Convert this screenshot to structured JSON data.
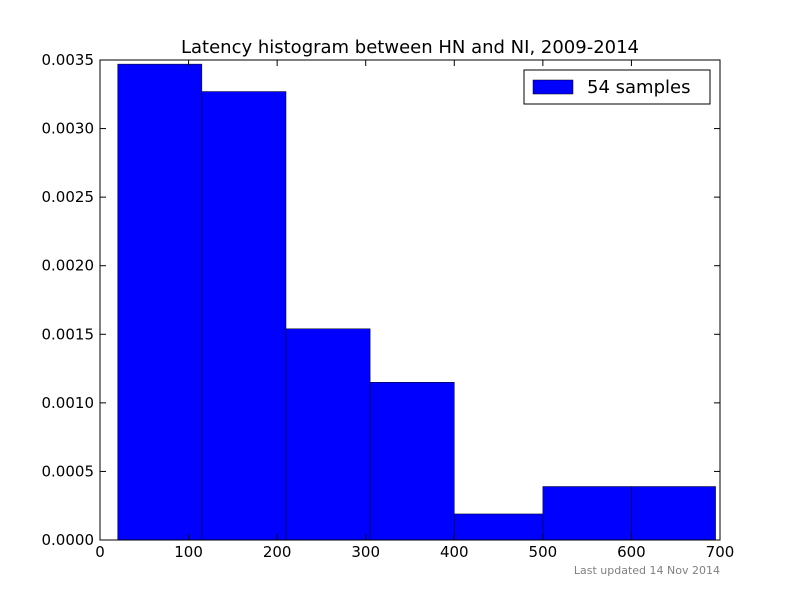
{
  "chart_data": {
    "type": "bar",
    "title": "Latency histogram between HN and NI, 2009-2014",
    "xlabel": "",
    "ylabel": "",
    "xlim": [
      0,
      700
    ],
    "ylim": [
      0,
      0.0035
    ],
    "xticks": [
      "0",
      "100",
      "200",
      "300",
      "400",
      "500",
      "600",
      "700"
    ],
    "yticks": [
      "0.0000",
      "0.0005",
      "0.0010",
      "0.0015",
      "0.0020",
      "0.0025",
      "0.0030",
      "0.0035"
    ],
    "bin_edges": [
      20,
      115,
      210,
      305,
      400,
      500,
      600,
      695
    ],
    "series": [
      {
        "name": "54 samples",
        "color": "#0000ff",
        "values": [
          0.00347,
          0.00327,
          0.00154,
          0.00115,
          0.00019,
          0.00039,
          0.00039
        ]
      }
    ],
    "grid": false,
    "legend_position": "top-right",
    "footnote": "Last updated 14 Nov 2014"
  }
}
